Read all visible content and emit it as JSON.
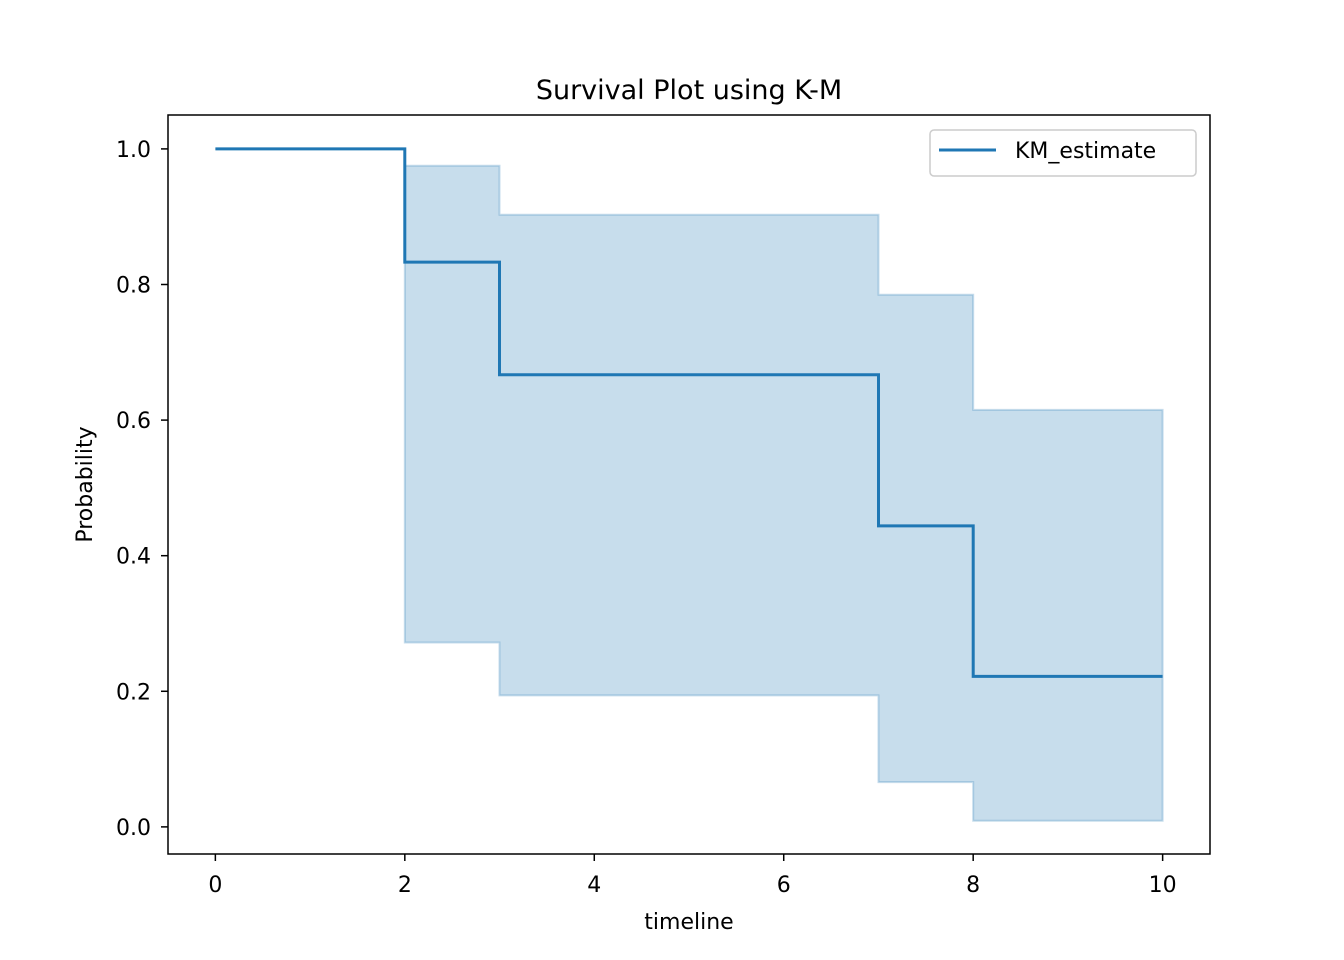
{
  "chart_data": {
    "type": "line",
    "title": "Survival Plot using K-M",
    "xlabel": "timeline",
    "ylabel": "Probability",
    "xlim": [
      -0.5,
      10.5
    ],
    "ylim": [
      -0.04,
      1.05
    ],
    "xticks": [
      0,
      2,
      4,
      6,
      8,
      10
    ],
    "xtick_labels": [
      "0",
      "2",
      "4",
      "6",
      "8",
      "10"
    ],
    "yticks": [
      0.0,
      0.2,
      0.4,
      0.6,
      0.8,
      1.0
    ],
    "ytick_labels": [
      "0.0",
      "0.2",
      "0.4",
      "0.6",
      "0.8",
      "1.0"
    ],
    "grid": false,
    "legend_position": "top-right",
    "series": [
      {
        "name": "KM_estimate",
        "step": "post",
        "x": [
          0,
          2,
          3,
          7,
          8,
          10
        ],
        "y": [
          1.0,
          0.833,
          0.667,
          0.444,
          0.222,
          0.222
        ],
        "ci_lower": [
          1.0,
          0.272,
          0.194,
          0.066,
          0.009,
          0.009
        ],
        "ci_upper": [
          1.0,
          0.975,
          0.903,
          0.785,
          0.615,
          0.615
        ],
        "color": "#1f77b4",
        "ci_color": "#1f77b4"
      }
    ]
  }
}
